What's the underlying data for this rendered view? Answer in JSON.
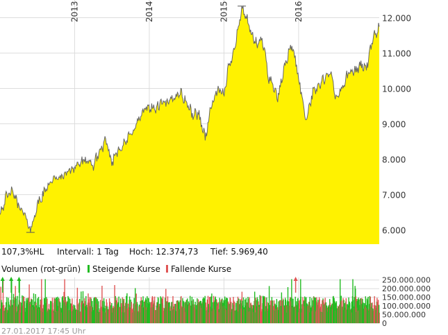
{
  "colors": {
    "area": "#fff200",
    "price_line": "#666666",
    "grid": "#dddddd",
    "up": "#22bb22",
    "down": "#e05555"
  },
  "info_bar": {
    "range": "107,3%HL",
    "interval": "Intervall: 1 Tag",
    "high": "Hoch:  12.374,73",
    "low": "Tief:  5.969,40"
  },
  "volume_legend": {
    "title": "Volumen (rot-grün)",
    "rising": "Steigende Kurse",
    "falling": "Fallende Kurse"
  },
  "footer": {
    "timestamp": "27.01.2017 17:45 Uhr"
  },
  "chart_data": [
    {
      "type": "area",
      "title": "",
      "year_labels": [
        "2013",
        "2014",
        "2015",
        "2016"
      ],
      "year_positions": [
        2013,
        2014,
        2015,
        2016
      ],
      "x_range": [
        2012.0,
        2017.08
      ],
      "y_ticks": [
        6000,
        7000,
        8000,
        9000,
        10000,
        11000,
        12000
      ],
      "y_tick_labels": [
        "6.000",
        "7.000",
        "8.000",
        "9.000",
        "10.000",
        "11.000",
        "12.000"
      ],
      "ylim": [
        5600,
        12500
      ],
      "grid": true,
      "high": 12374.73,
      "low": 5969.4,
      "x": [
        2012.0,
        2012.08,
        2012.16,
        2012.24,
        2012.33,
        2012.41,
        2012.5,
        2012.58,
        2012.66,
        2012.75,
        2012.83,
        2012.91,
        2013.0,
        2013.08,
        2013.16,
        2013.24,
        2013.33,
        2013.41,
        2013.45,
        2013.5,
        2013.58,
        2013.66,
        2013.75,
        2013.83,
        2013.91,
        2014.0,
        2014.08,
        2014.16,
        2014.24,
        2014.33,
        2014.41,
        2014.5,
        2014.58,
        2014.66,
        2014.75,
        2014.83,
        2014.91,
        2015.0,
        2015.05,
        2015.1,
        2015.15,
        2015.2,
        2015.25,
        2015.3,
        2015.35,
        2015.4,
        2015.45,
        2015.5,
        2015.55,
        2015.6,
        2015.66,
        2015.72,
        2015.8,
        2015.86,
        2015.92,
        2016.0,
        2016.05,
        2016.1,
        2016.15,
        2016.2,
        2016.28,
        2016.36,
        2016.44,
        2016.5,
        2016.58,
        2016.66,
        2016.75,
        2016.83,
        2016.91,
        2017.0,
        2017.05,
        2017.08
      ],
      "y": [
        6500,
        6900,
        7100,
        6750,
        6400,
        6000,
        6700,
        7000,
        7350,
        7450,
        7500,
        7650,
        7800,
        7900,
        7950,
        7800,
        8200,
        8500,
        8250,
        7900,
        8300,
        8400,
        8700,
        9000,
        9300,
        9500,
        9400,
        9600,
        9550,
        9750,
        9900,
        9600,
        9250,
        9300,
        8600,
        9500,
        9950,
        9800,
        10500,
        10800,
        11300,
        11800,
        12300,
        12000,
        11600,
        11400,
        11200,
        11400,
        11000,
        10300,
        10100,
        9700,
        10500,
        11000,
        11200,
        10300,
        9700,
        9100,
        9600,
        9900,
        10100,
        10300,
        10400,
        9700,
        10000,
        10400,
        10500,
        10650,
        10600,
        11400,
        11600,
        11800
      ]
    },
    {
      "type": "bar",
      "title": "Volumen (rot-grün)",
      "series": [
        {
          "name": "Steigende Kurse"
        },
        {
          "name": "Fallende Kurse"
        }
      ],
      "y_ticks": [
        0,
        50000000,
        100000000,
        150000000,
        200000000,
        250000000
      ],
      "y_tick_labels": [
        "0",
        "50.000.000",
        "100.000.000",
        "150.000.000",
        "200.000.000",
        "250.000.000"
      ],
      "ylim": [
        0,
        265000000
      ],
      "x_range": [
        2012.0,
        2017.08
      ],
      "bar_step_years": 0.005,
      "value_model": {
        "base": 90000000,
        "spread": 70000000,
        "down_share": 0.4,
        "spikes": [
          2012.035,
          2012.15,
          2012.255,
          2012.55,
          2012.6,
          2012.86,
          2015.9,
          2016.02,
          2016.55,
          2016.72
        ],
        "spike_value": 255000000
      },
      "markers": [
        {
          "x": 2012.035,
          "color": "up"
        },
        {
          "x": 2012.15,
          "color": "up"
        },
        {
          "x": 2012.255,
          "color": "up"
        },
        {
          "x": 2015.96,
          "color": "down"
        }
      ]
    }
  ]
}
